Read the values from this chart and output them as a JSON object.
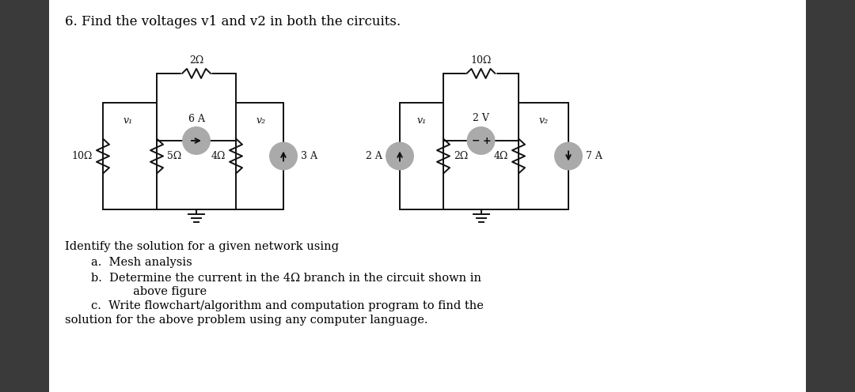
{
  "title": "6. Find the voltages v1 and v2 in both the circuits.",
  "background_color": "#ffffff",
  "page_bg": "#3a3a3a",
  "text_color": "#000000",
  "col": "#111111",
  "gray_fill": "#aaaaaa",
  "body_text_line0": "Identify the solution for a given network using",
  "body_text_line1": "a.  Mesh analysis",
  "body_text_line2": "b.  Determine the current in the 4Ω branch in the circuit shown in",
  "body_text_line3": "     above figure",
  "body_text_line4": "c.  Write flowchart/algorithm and computation program to find the",
  "body_text_line5": "solution for the above problem using any computer language.",
  "fig_width": 10.8,
  "fig_height": 4.96,
  "lw": 1.4
}
